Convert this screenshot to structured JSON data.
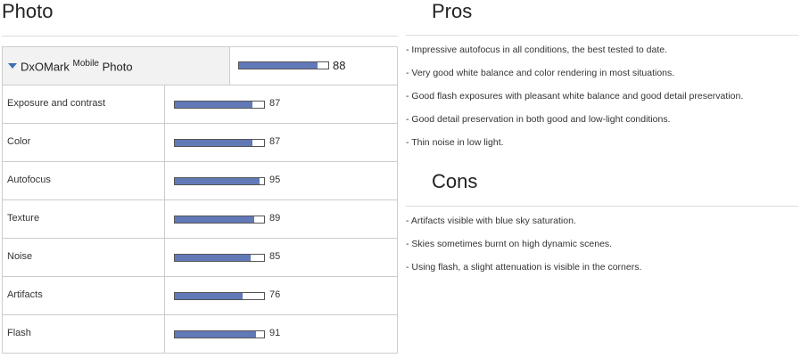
{
  "photo": {
    "title": "Photo",
    "summary": {
      "label": "DxOMark",
      "superscript": "Mobile",
      "label_suffix": "Photo",
      "score": 88
    },
    "rows": [
      {
        "label": "Exposure and contrast",
        "score": 87
      },
      {
        "label": "Color",
        "score": 87
      },
      {
        "label": "Autofocus",
        "score": 95
      },
      {
        "label": "Texture",
        "score": 89
      },
      {
        "label": "Noise",
        "score": 85
      },
      {
        "label": "Artifacts",
        "score": 76
      },
      {
        "label": "Flash",
        "score": 91
      }
    ]
  },
  "pros": {
    "title": "Pros",
    "items": [
      "- Impressive autofocus in all conditions, the best tested to date.",
      "- Very good white balance and color rendering in most situations.",
      "- Good flash exposures with pleasant white balance and good detail preservation.",
      "- Good detail preservation in both good and low-light conditions.",
      "- Thin noise in low light."
    ]
  },
  "cons": {
    "title": "Cons",
    "items": [
      "- Artifacts visible with blue sky saturation.",
      "- Skies sometimes burnt on high dynamic scenes.",
      "- Using flash, a slight attenuation is visible in the corners."
    ]
  }
}
